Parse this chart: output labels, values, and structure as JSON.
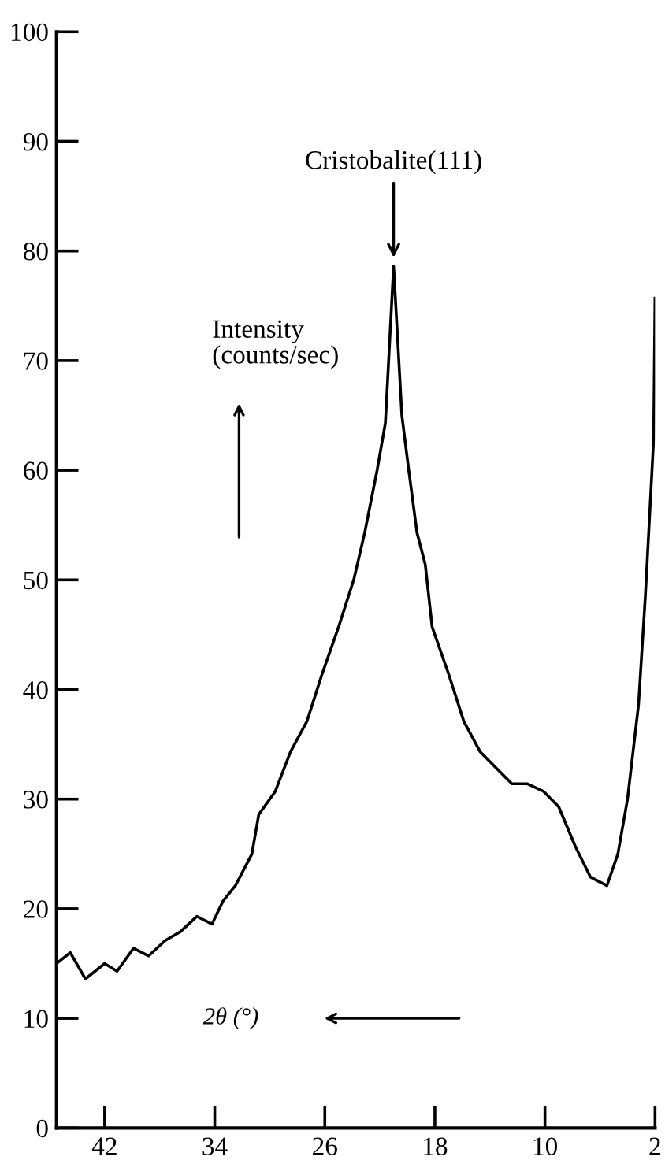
{
  "chart_data": {
    "type": "line",
    "xlabel": "2θ (°)",
    "ylabel": "Intensity\n(counts/sec)",
    "annotations": [
      {
        "text": "Cristobalite(111)",
        "x": 21.0,
        "y": 79
      }
    ],
    "x": [
      45.5,
      44.5,
      43.4,
      42,
      41.1,
      39.9,
      38.8,
      37.6,
      36.5,
      35.3,
      34.2,
      33.4,
      32.5,
      31.3,
      30.8,
      29.6,
      28.5,
      27.3,
      26.2,
      25.0,
      23.9,
      23.1,
      22.2,
      21.6,
      21.0,
      20.4,
      19.9,
      19.3,
      18.7,
      18.2,
      17.0,
      15.9,
      14.7,
      13.6,
      12.4,
      11.3,
      10.1,
      9.0,
      7.8,
      6.7,
      5.5,
      4.7,
      4.0,
      3.2,
      2.7,
      2.1,
      2.0
    ],
    "series": [
      {
        "color": "#000000",
        "values": [
          15,
          16,
          13.6,
          15,
          14.3,
          16.4,
          15.7,
          17.1,
          17.9,
          19.3,
          18.6,
          20.7,
          22.1,
          25,
          28.6,
          30.7,
          34.3,
          37.1,
          41.4,
          45.7,
          50,
          54.3,
          60,
          64.3,
          78.6,
          65,
          60,
          54.3,
          51.4,
          45.7,
          41.4,
          37.1,
          34.3,
          32.9,
          31.4,
          31.4,
          30.7,
          29.3,
          25.7,
          22.9,
          22.1,
          25,
          30,
          38.6,
          48.6,
          62.9,
          75.7
        ]
      }
    ],
    "xlim": [
      45.5,
      2
    ],
    "ylim": [
      0,
      100
    ],
    "xticks": [
      42,
      34,
      26,
      18,
      10,
      2
    ],
    "yticks": [
      0,
      10,
      20,
      30,
      40,
      50,
      60,
      70,
      80,
      90,
      100
    ],
    "grid": false,
    "legend": false,
    "marker": "none",
    "line_style": "solid"
  }
}
